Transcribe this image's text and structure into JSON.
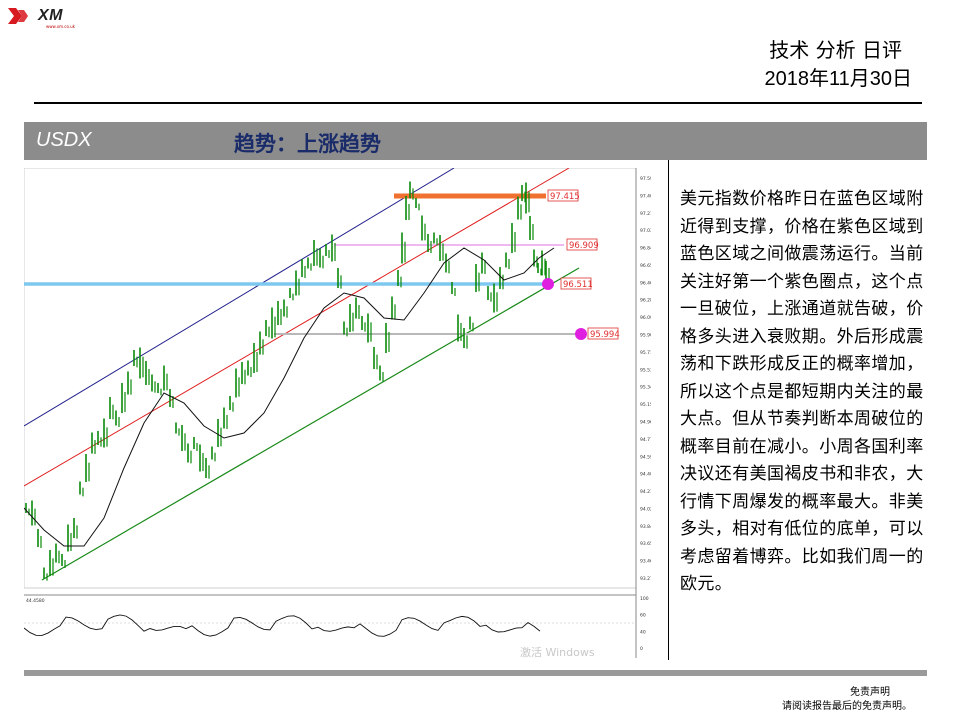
{
  "brand": {
    "logo_text": "XM",
    "logo_sub": "www.xm.co.uk"
  },
  "header": {
    "title": "技术 分析 日评",
    "date": "2018年11月30日"
  },
  "section": {
    "symbol": "USDX",
    "trend": "趋势：上涨趋势"
  },
  "chart_data": {
    "type": "line",
    "symbol": "USDX",
    "price_labels": [
      97.415,
      96.909,
      96.511,
      95.994
    ],
    "y_axis_ticks": [
      "97.590",
      "97.400",
      "97.215",
      "97.030",
      "96.840",
      "96.650",
      "96.465",
      "96.280",
      "96.090",
      "95.900",
      "95.715",
      "95.530",
      "95.340",
      "95.155",
      "94.965",
      "94.775",
      "94.590",
      "94.400",
      "94.215",
      "94.025",
      "93.840",
      "93.650",
      "93.465",
      "93.275"
    ],
    "oscillator_ticks": [
      "100",
      "60",
      "40",
      "0"
    ],
    "oscillator_label": "44.4580",
    "colors": {
      "candles": "#0a8a0a",
      "ma": "#111111",
      "upper_channel": "#1f1f8c",
      "middle_channel": "#e02020",
      "lower_channel": "#1a8a1a",
      "resistance": "#f07030",
      "pink_level": "#e070e0",
      "blue_support": "#7ec8f0",
      "gray_level": "#b8b8b8",
      "marker": "#e020e0",
      "label_red": "#e03030"
    }
  },
  "analysis_text": "美元指数价格昨日在蓝色区域附近得到支撑，价格在紫色区域到蓝色区域之间做震荡运行。当前关注好第一个紫色圈点，这个点一旦破位，上涨通道就告破，价格多头进入衰败期。外后形成震荡和下跌形成反正的概率增加，所以这个点是都短期内关注的最大点。但从节奏判断本周破位的概率目前在减小。小周各国利率决议还有美国褐皮书和非农，大行情下周爆发的概率最大。非美多头，相对有低位的底单，可以考虑留着博弈。比如我们周一的欧元。",
  "watermark": "激活 Windows",
  "footer": {
    "disclaimer_title": "免责声明",
    "disclaimer_note": "请阅读报告最后的免责声明。"
  }
}
